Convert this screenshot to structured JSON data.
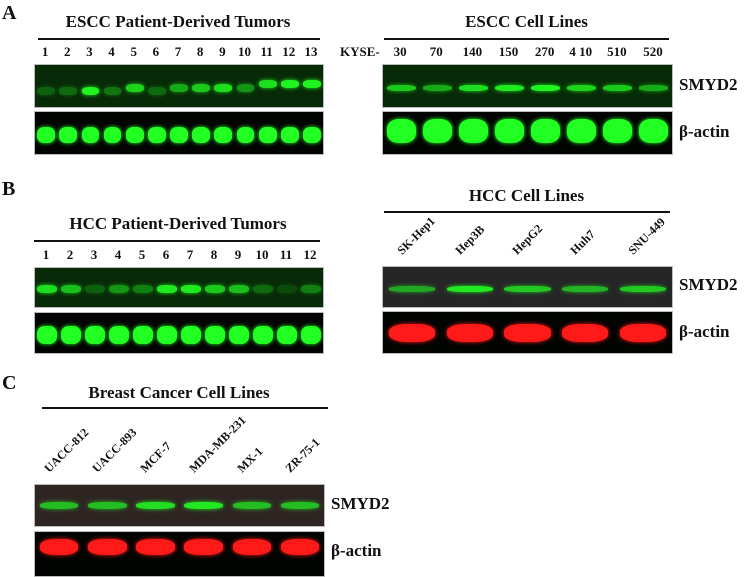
{
  "figure": {
    "panels": [
      {
        "letter": "A",
        "blots": [
          {
            "title": "ESCC Patient-Derived Tumors",
            "lane_prefix": "",
            "lanes": [
              "1",
              "2",
              "3",
              "4",
              "5",
              "6",
              "7",
              "8",
              "9",
              "10",
              "11",
              "12",
              "13"
            ],
            "smyd2_intensity": [
              0.25,
              0.3,
              0.95,
              0.35,
              0.8,
              0.3,
              0.6,
              0.75,
              0.85,
              0.5,
              0.85,
              0.95,
              0.95
            ],
            "smyd2_position": [
              0.62,
              0.62,
              0.62,
              0.62,
              0.55,
              0.62,
              0.55,
              0.55,
              0.55,
              0.55,
              0.45,
              0.45,
              0.45
            ],
            "actin_intensity": [
              1,
              1,
              1,
              1,
              1,
              1,
              1,
              1,
              1,
              1,
              1,
              1,
              1
            ]
          },
          {
            "title": "ESCC Cell Lines",
            "lane_prefix": "KYSE-",
            "lanes": [
              "30",
              "70",
              "140",
              "150",
              "270",
              "4 10",
              "510",
              "520"
            ],
            "smyd2_intensity": [
              0.75,
              0.6,
              0.85,
              0.9,
              0.95,
              0.8,
              0.75,
              0.6
            ],
            "actin_intensity": [
              1,
              1,
              1,
              1,
              1,
              1,
              1,
              1
            ]
          }
        ]
      },
      {
        "letter": "B",
        "blots": [
          {
            "title": "HCC Patient-Derived Tumors",
            "lanes": [
              "1",
              "2",
              "3",
              "4",
              "5",
              "6",
              "7",
              "8",
              "9",
              "10",
              "11",
              "12"
            ],
            "smyd2_intensity": [
              0.85,
              0.7,
              0.25,
              0.5,
              0.4,
              0.9,
              0.9,
              0.75,
              0.7,
              0.3,
              0.15,
              0.4
            ],
            "actin_intensity": [
              1,
              1,
              1,
              1,
              1,
              1,
              1,
              1,
              1,
              1,
              1,
              1
            ]
          },
          {
            "title": "HCC Cell Lines",
            "lanes": [
              "SK-Hep1",
              "Hep3B",
              "HepG2",
              "Huh7",
              "SNU-449"
            ],
            "smyd2_intensity": [
              0.6,
              0.9,
              0.75,
              0.65,
              0.75
            ],
            "actin_intensity": [
              1,
              1,
              1,
              1,
              1
            ]
          }
        ]
      },
      {
        "letter": "C",
        "blots": [
          {
            "title": "Breast Cancer Cell Lines",
            "lanes": [
              "UACC-812",
              "UACC-893",
              "MCF-7",
              "MDA-MB-231",
              "MX-1",
              "ZR-75-1"
            ],
            "smyd2_intensity": [
              0.7,
              0.7,
              0.85,
              0.9,
              0.7,
              0.7
            ],
            "actin_intensity": [
              1,
              1,
              1,
              1,
              1,
              1
            ]
          }
        ]
      }
    ],
    "row_labels": {
      "target": "SMYD2",
      "loading": "β-actin"
    },
    "colors": {
      "green": "#22ff22",
      "red": "#ff1a1a"
    }
  }
}
